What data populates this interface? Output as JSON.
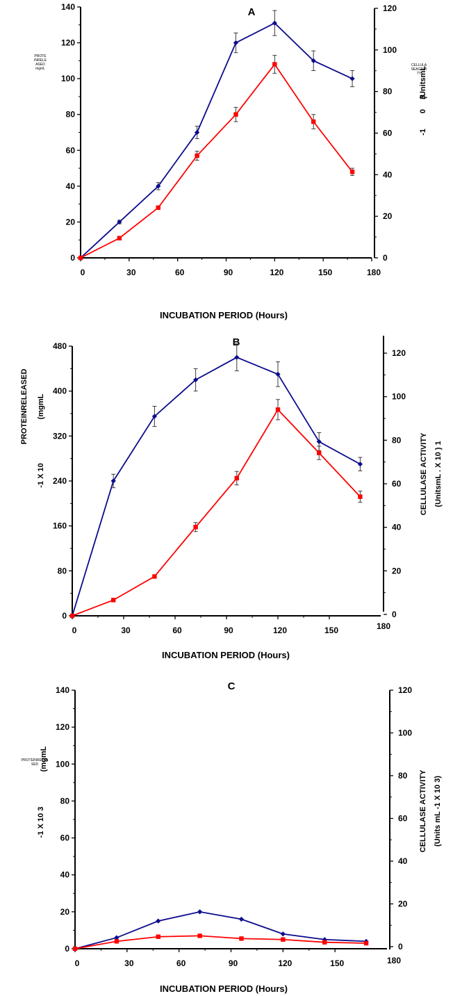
{
  "colors": {
    "blue_series": "#0b0b8c",
    "red_series": "#ff0000",
    "error_bar": "#3a3a3a"
  },
  "chart_data": [
    {
      "type": "line",
      "title": "A",
      "xlabel": "INCUBATION PERIOD (Hours)",
      "ylabel_left": "",
      "ylabel_right": "",
      "left_ylabel_lines": [
        "PROTE",
        "INRELE",
        "ASED",
        "mgmL"
      ],
      "right_ylabel_lines": [
        "CELLULA",
        "SEACTIVI",
        "TY"
      ],
      "right_ylabel_fragments": [
        "(UnitsmL",
        "3",
        "0",
        "-1"
      ],
      "x_ticks": [
        0,
        30,
        60,
        90,
        120,
        150,
        180
      ],
      "left_ticks": [
        0,
        20,
        40,
        60,
        80,
        100,
        120,
        140
      ],
      "right_ticks": [
        0,
        20,
        40,
        60,
        80,
        100,
        120
      ],
      "xlim": [
        0,
        180
      ],
      "left_ylim": [
        0,
        140
      ],
      "right_ylim": [
        0,
        120
      ],
      "series": [
        {
          "axis": "left",
          "color": "#0b0b8c",
          "marker": "diamond",
          "x": [
            0,
            24,
            48,
            72,
            96,
            120,
            144,
            168
          ],
          "y": [
            0,
            20,
            40,
            70,
            120,
            131,
            110,
            100
          ],
          "err": [
            0,
            1,
            2,
            3.5,
            5.5,
            7,
            5.5,
            4.5
          ]
        },
        {
          "axis": "left",
          "color": "#ff0000",
          "marker": "square",
          "x": [
            0,
            24,
            48,
            72,
            96,
            120,
            144,
            168
          ],
          "y": [
            0,
            11,
            28,
            57,
            80,
            108,
            76,
            48
          ],
          "err": [
            0,
            0.5,
            1,
            2.5,
            4,
            5,
            4,
            2
          ]
        }
      ]
    },
    {
      "type": "line",
      "title": "B",
      "xlabel": "INCUBATION PERIOD (Hours)",
      "ylabel_left": "",
      "ylabel_right": "",
      "left_ylabel_lines": [
        "PROTEINRELEASED",
        "(mgmL",
        "-1 X 10"
      ],
      "right_ylabel_lines": [
        "CELLULASE ACTIVITY",
        "(UnitsmL . X 10 ) 1"
      ],
      "x_ticks": [
        0,
        30,
        60,
        90,
        120,
        150
      ],
      "x_extra_label": "180",
      "left_ticks": [
        0,
        80,
        160,
        240,
        320,
        400,
        480
      ],
      "right_ticks": [
        0,
        20,
        40,
        60,
        80,
        100,
        120
      ],
      "xlim": [
        0,
        180
      ],
      "left_ylim": [
        0,
        480
      ],
      "right_ylim": [
        0,
        128
      ],
      "series": [
        {
          "axis": "left",
          "color": "#0b0b8c",
          "marker": "diamond",
          "x": [
            0,
            24,
            48,
            72,
            96,
            120,
            144,
            168
          ],
          "y": [
            0,
            240,
            355,
            420,
            460,
            430,
            310,
            270
          ],
          "err": [
            0,
            12,
            18,
            20,
            24,
            22,
            16,
            12
          ]
        },
        {
          "axis": "left",
          "color": "#ff0000",
          "marker": "square",
          "x": [
            0,
            24,
            48,
            72,
            96,
            120,
            144,
            168
          ],
          "y": [
            0,
            28,
            70,
            158,
            245,
            367,
            290,
            212
          ],
          "err": [
            0,
            3,
            3,
            8,
            12,
            18,
            12,
            10
          ]
        }
      ]
    },
    {
      "type": "line",
      "title": "C",
      "xlabel": "INCUBATION PERIOD (Hours)",
      "ylabel_left": "",
      "ylabel_right": "",
      "left_ylabel_lines": [
        "PROTEINRELEA",
        "SED",
        "(mgmL",
        "-1 X 10 3"
      ],
      "right_ylabel_lines": [
        "CELLULASE ACTIVITY",
        "(Units mL -1 X 10 3)"
      ],
      "x_ticks": [
        0,
        30,
        60,
        90,
        120,
        150
      ],
      "x_extra_label": "180",
      "left_ticks": [
        0,
        20,
        40,
        60,
        80,
        100,
        120,
        140
      ],
      "right_ticks": [
        0,
        20,
        40,
        60,
        80,
        100,
        120
      ],
      "xlim": [
        0,
        180
      ],
      "left_ylim": [
        0,
        140
      ],
      "right_ylim": [
        0,
        120
      ],
      "series": [
        {
          "axis": "left",
          "color": "#0b0b8c",
          "marker": "diamond",
          "x": [
            0,
            24,
            48,
            72,
            96,
            120,
            144,
            168
          ],
          "y": [
            0,
            6,
            15,
            20,
            16,
            8,
            5,
            4
          ],
          "err": [
            0,
            0,
            0,
            0,
            0,
            0,
            0,
            0
          ]
        },
        {
          "axis": "left",
          "color": "#ff0000",
          "marker": "square",
          "x": [
            0,
            24,
            48,
            72,
            96,
            120,
            144,
            168
          ],
          "y": [
            0,
            4,
            6.5,
            7,
            5.5,
            5,
            3.5,
            3
          ],
          "err": [
            0,
            0,
            0,
            0,
            0,
            0,
            0,
            0
          ]
        }
      ]
    }
  ]
}
